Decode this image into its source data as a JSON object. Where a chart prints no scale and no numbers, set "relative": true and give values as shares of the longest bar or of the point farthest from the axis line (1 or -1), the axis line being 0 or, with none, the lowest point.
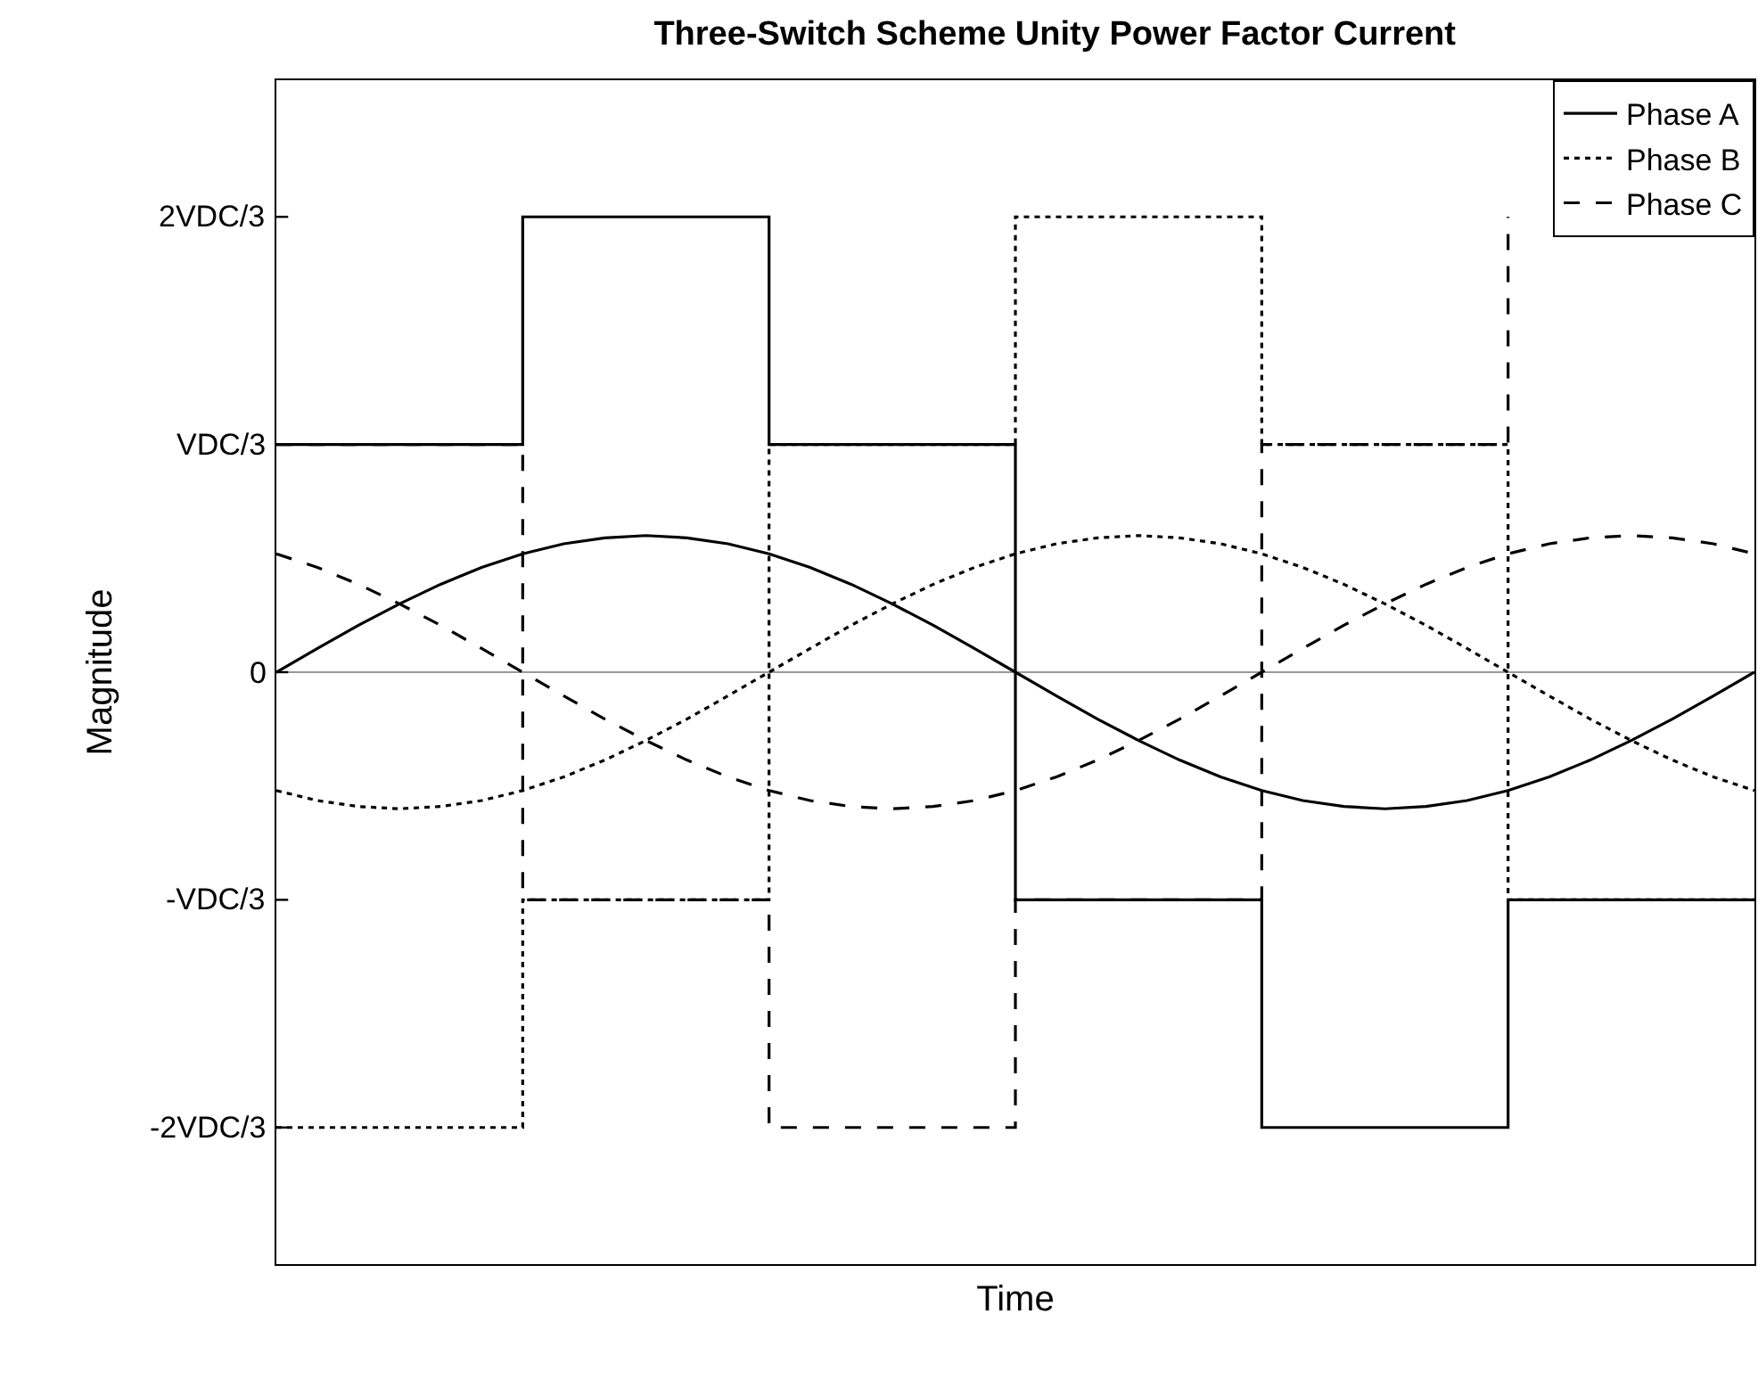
{
  "chart_data": {
    "type": "line",
    "title": "Three-Switch Scheme Unity Power Factor Current",
    "xlabel": "Time",
    "ylabel": "Magnitude",
    "relative": true,
    "categories": [
      null,
      null,
      null,
      null,
      null,
      null,
      null,
      null,
      null,
      null,
      null,
      null,
      null,
      null,
      null,
      null,
      null,
      null,
      null,
      null,
      null,
      null,
      null,
      null,
      null,
      null,
      null,
      null,
      null,
      null,
      null,
      null,
      null,
      null,
      null,
      null,
      null
    ],
    "series": [
      {
        "name": "Phase A",
        "line_style": "solid",
        "color": "#000000",
        "values": [
          0,
          0.052,
          0.103,
          0.15,
          0.193,
          0.23,
          0.26,
          0.282,
          0.295,
          0.3,
          0.295,
          0.282,
          0.26,
          0.23,
          0.193,
          0.15,
          0.103,
          0.052,
          0,
          -0.052,
          -0.103,
          -0.15,
          -0.193,
          -0.23,
          -0.26,
          -0.282,
          -0.295,
          -0.3,
          -0.295,
          -0.282,
          -0.26,
          -0.23,
          -0.193,
          -0.15,
          -0.103,
          -0.052,
          0
        ]
      },
      {
        "name": "Phase B",
        "line_style": "dotted",
        "color": "#000000",
        "values": [
          -0.26,
          -0.282,
          -0.295,
          -0.3,
          -0.295,
          -0.282,
          -0.26,
          -0.23,
          -0.193,
          -0.15,
          -0.103,
          -0.052,
          0,
          0.052,
          0.103,
          0.15,
          0.193,
          0.23,
          0.26,
          0.282,
          0.295,
          0.3,
          0.295,
          0.282,
          0.26,
          0.23,
          0.193,
          0.15,
          0.103,
          0.052,
          0,
          -0.052,
          -0.103,
          -0.15,
          -0.193,
          -0.23,
          -0.26
        ]
      },
      {
        "name": "Phase C",
        "line_style": "dashed",
        "color": "#000000",
        "values": [
          0.26,
          0.23,
          0.193,
          0.15,
          0.103,
          0.052,
          0,
          -0.052,
          -0.103,
          -0.15,
          -0.193,
          -0.23,
          -0.26,
          -0.282,
          -0.295,
          -0.3,
          -0.295,
          -0.282,
          -0.26,
          -0.23,
          -0.193,
          -0.15,
          -0.103,
          -0.052,
          0,
          0.052,
          0.103,
          0.15,
          0.193,
          0.23,
          0.26,
          0.282,
          0.295,
          0.3,
          0.295,
          0.282,
          0.26
        ]
      },
      {
        "type": "step",
        "line_style": "solid",
        "color": "#000000",
        "values": [
          0.5,
          0.5,
          0.5,
          0.5,
          0.5,
          0.5,
          1,
          1,
          1,
          1,
          1,
          1,
          0.5,
          0.5,
          0.5,
          0.5,
          0.5,
          0.5,
          -0.5,
          -0.5,
          -0.5,
          -0.5,
          -0.5,
          -0.5,
          -1,
          -1,
          -1,
          -1,
          -1,
          -1,
          -0.5,
          -0.5,
          -0.5,
          -0.5,
          -0.5,
          -0.5,
          -0.5
        ]
      },
      {
        "type": "step",
        "line_style": "dotted",
        "color": "#000000",
        "values": [
          -1,
          -1,
          -1,
          -1,
          -1,
          -1,
          -0.5,
          -0.5,
          -0.5,
          -0.5,
          -0.5,
          -0.5,
          0.5,
          0.5,
          0.5,
          0.5,
          0.5,
          0.5,
          1,
          1,
          1,
          1,
          1,
          1,
          0.5,
          0.5,
          0.5,
          0.5,
          0.5,
          0.5,
          -0.5,
          -0.5,
          -0.5,
          -0.5,
          -0.5,
          -0.5,
          -0.5
        ]
      },
      {
        "type": "step",
        "line_style": "dashed",
        "color": "#000000",
        "values": [
          0.5,
          0.5,
          0.5,
          0.5,
          0.5,
          0.5,
          -0.5,
          -0.5,
          -0.5,
          -0.5,
          -0.5,
          -0.5,
          -1,
          -1,
          -1,
          -1,
          -1,
          -1,
          -0.5,
          -0.5,
          -0.5,
          -0.5,
          -0.5,
          -0.5,
          0.5,
          0.5,
          0.5,
          0.5,
          0.5,
          0.5,
          1,
          null,
          null,
          null,
          null,
          null,
          null
        ]
      }
    ],
    "annotations": [
      "2VDC/3",
      "VDC/3",
      "0",
      "-VDC/3",
      "-2VDC/3"
    ],
    "ref_lines": [
      {
        "axis": "y",
        "value": 0,
        "color": "#999999"
      }
    ],
    "grid": false,
    "legend": "top right"
  }
}
